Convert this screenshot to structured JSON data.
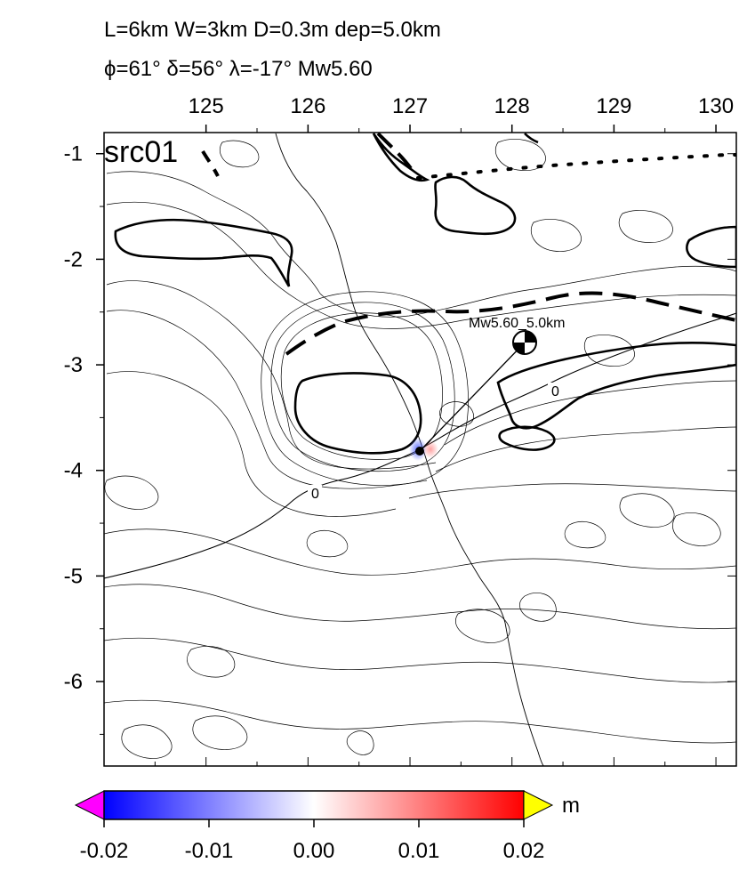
{
  "header": {
    "line1": "L=6km W=3km D=0.3m dep=5.0km",
    "line2": "ϕ=61° δ=56° λ=-17° Mw5.60"
  },
  "map": {
    "panel_label": "src01",
    "x_ticks": [
      "125",
      "126",
      "127",
      "128",
      "129",
      "130"
    ],
    "y_ticks": [
      "-1",
      "-2",
      "-3",
      "-4",
      "-5",
      "-6"
    ],
    "event_label": "Mw5.60_5.0km",
    "contour_labels": [
      "0",
      "0"
    ]
  },
  "colorbar": {
    "unit": "m",
    "ticks": [
      "-0.02",
      "-0.01",
      "0.00",
      "0.01",
      "0.02"
    ],
    "colors": {
      "low_end": "#ff00ff",
      "min": "#0000ff",
      "mid": "#ffffff",
      "max": "#ff0000",
      "high_end": "#ffff00"
    }
  },
  "chart_data": {
    "type": "heatmap",
    "xlim": [
      124.0,
      130.2
    ],
    "ylim": [
      -6.8,
      -0.8
    ],
    "color_range": [
      -0.02,
      0.02
    ],
    "unit": "m",
    "event": {
      "lon": 128.05,
      "lat": -2.8,
      "mw": 5.6,
      "depth_km": 5.0
    },
    "source": {
      "lon": 127.15,
      "lat": -3.82
    }
  }
}
